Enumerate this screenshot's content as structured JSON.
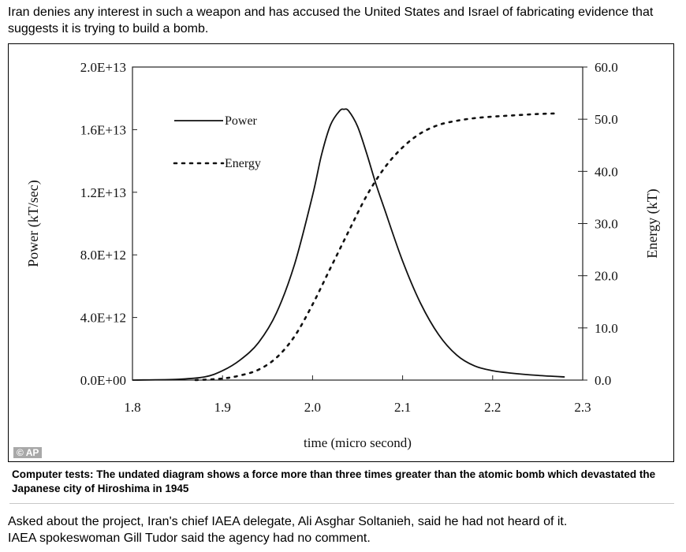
{
  "article": {
    "intro": "Iran denies any interest in such a weapon and has accused the United States and Israel of fabricating evidence that suggests it is trying to build a bomb.",
    "caption": "Computer tests: The undated diagram shows a force more than three times greater than the atomic bomb which devastated the Japanese city of Hiroshima in 1945",
    "watermark": "© AP",
    "after_1": "Asked about the project, Iran's chief IAEA delegate, Ali Asghar Soltanieh, said he had not heard of it.",
    "after_2": "IAEA spokeswoman Gill Tudor said the agency had no comment."
  },
  "chart_data": {
    "type": "line",
    "title": "",
    "xlabel": "time (micro second)",
    "ylabel": "Power (kT/sec)",
    "y2label": "Energy (kT)",
    "xlim": [
      1.8,
      2.3
    ],
    "ylim": [
      0,
      20000000000000.0
    ],
    "y2lim": [
      0,
      60
    ],
    "x_ticks": [
      "1.8",
      "1.9",
      "2.0",
      "2.1",
      "2.2",
      "2.3"
    ],
    "y_ticks": [
      "0.0E+00",
      "4.0E+12",
      "8.0E+12",
      "1.2E+13",
      "1.6E+13",
      "2.0E+13"
    ],
    "y2_ticks": [
      "0.0",
      "10.0",
      "20.0",
      "30.0",
      "40.0",
      "50.0",
      "60.0"
    ],
    "grid": false,
    "legend_position": "top-left",
    "series": [
      {
        "name": "Power",
        "axis": "left",
        "style": "solid",
        "x": [
          1.8,
          1.85,
          1.88,
          1.9,
          1.92,
          1.94,
          1.96,
          1.98,
          2.0,
          2.01,
          2.02,
          2.03,
          2.035,
          2.04,
          2.05,
          2.06,
          2.07,
          2.08,
          2.1,
          2.12,
          2.14,
          2.16,
          2.18,
          2.2,
          2.22,
          2.25,
          2.28
        ],
        "values": [
          0,
          50000000000.0,
          200000000000.0,
          600000000000.0,
          1300000000000.0,
          2400000000000.0,
          4300000000000.0,
          7400000000000.0,
          11800000000000.0,
          14400000000000.0,
          16300000000000.0,
          17200000000000.0,
          17300000000000.0,
          17200000000000.0,
          16200000000000.0,
          14500000000000.0,
          12600000000000.0,
          10900000000000.0,
          7600000000000.0,
          4900000000000.0,
          2900000000000.0,
          1600000000000.0,
          900000000000.0,
          600000000000.0,
          450000000000.0,
          300000000000.0,
          200000000000.0
        ]
      },
      {
        "name": "Energy",
        "axis": "right",
        "style": "dashed",
        "x": [
          1.87,
          1.9,
          1.92,
          1.94,
          1.96,
          1.98,
          2.0,
          2.02,
          2.04,
          2.06,
          2.08,
          2.1,
          2.12,
          2.14,
          2.16,
          2.18,
          2.2,
          2.22,
          2.25,
          2.27
        ],
        "values": [
          0,
          0.3,
          0.9,
          2.0,
          4.3,
          8.4,
          14.5,
          21.5,
          28.5,
          35.3,
          40.7,
          44.6,
          47.3,
          48.9,
          49.7,
          50.2,
          50.5,
          50.7,
          51.0,
          51.1
        ]
      }
    ]
  }
}
